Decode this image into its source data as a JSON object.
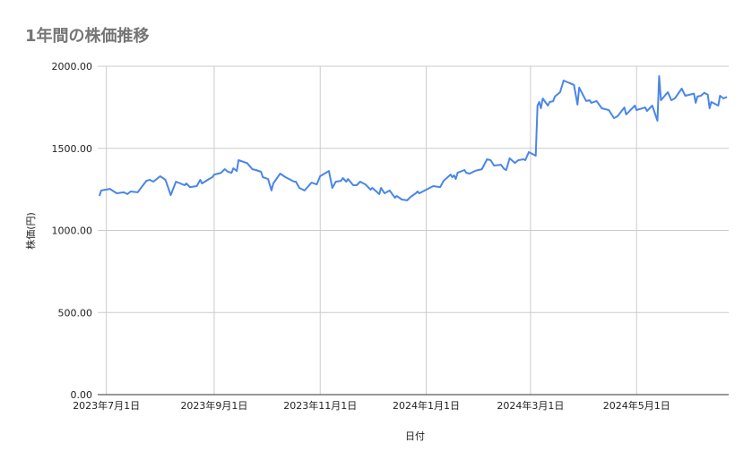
{
  "chart_data": {
    "type": "line",
    "title": "1年間の株価推移",
    "xlabel": "日付",
    "ylabel": "株価(円)",
    "ylim": [
      0,
      2000
    ],
    "xlim": [
      "2023-06-26",
      "2024-06-23"
    ],
    "yticks": [
      0,
      500,
      1000,
      1500,
      2000
    ],
    "ytick_labels": [
      "0.00",
      "500.00",
      "1000.00",
      "1500.00",
      "2000.00"
    ],
    "xticks": [
      "2023-07-01",
      "2023-09-01",
      "2023-11-01",
      "2024-01-01",
      "2024-03-01",
      "2024-05-01"
    ],
    "xtick_labels": [
      "2023年7月1日",
      "2023年9月1日",
      "2023年11月1日",
      "2024年1月1日",
      "2024年3月1日",
      "2024年5月1日"
    ],
    "grid": true,
    "line_color": "#4a86e8",
    "x": [
      "2023-06-27",
      "2023-06-28",
      "2023-07-03",
      "2023-07-07",
      "2023-07-11",
      "2023-07-13",
      "2023-07-15",
      "2023-07-19",
      "2023-07-24",
      "2023-07-26",
      "2023-07-28",
      "2023-08-01",
      "2023-08-04",
      "2023-08-07",
      "2023-08-10",
      "2023-08-15",
      "2023-08-16",
      "2023-08-18",
      "2023-08-22",
      "2023-08-24",
      "2023-08-25",
      "2023-08-29",
      "2023-08-31",
      "2023-09-01",
      "2023-09-05",
      "2023-09-07",
      "2023-09-09",
      "2023-09-11",
      "2023-09-12",
      "2023-09-14",
      "2023-09-15",
      "2023-09-20",
      "2023-09-23",
      "2023-09-25",
      "2023-09-28",
      "2023-09-29",
      "2023-10-02",
      "2023-10-04",
      "2023-10-05",
      "2023-10-09",
      "2023-10-12",
      "2023-10-17",
      "2023-10-18",
      "2023-10-20",
      "2023-10-23",
      "2023-10-27",
      "2023-10-30",
      "2023-11-01",
      "2023-11-06",
      "2023-11-08",
      "2023-11-10",
      "2023-11-13",
      "2023-11-14",
      "2023-11-16",
      "2023-11-17",
      "2023-11-20",
      "2023-11-22",
      "2023-11-24",
      "2023-11-27",
      "2023-11-30",
      "2023-12-01",
      "2023-12-05",
      "2023-12-06",
      "2023-12-08",
      "2023-12-11",
      "2023-12-14",
      "2023-12-15",
      "2023-12-18",
      "2023-12-21",
      "2023-12-23",
      "2023-12-26",
      "2023-12-27",
      "2023-12-28",
      "2024-01-05",
      "2024-01-09",
      "2024-01-11",
      "2024-01-15",
      "2024-01-16",
      "2024-01-17",
      "2024-01-18",
      "2024-01-19",
      "2024-01-23",
      "2024-01-24",
      "2024-01-26",
      "2024-01-29",
      "2024-01-31",
      "2024-02-02",
      "2024-02-05",
      "2024-02-07",
      "2024-02-09",
      "2024-02-13",
      "2024-02-15",
      "2024-02-16",
      "2024-02-18",
      "2024-02-21",
      "2024-02-23",
      "2024-02-26",
      "2024-02-27",
      "2024-02-29",
      "2024-03-04",
      "2024-03-05",
      "2024-03-06",
      "2024-03-07",
      "2024-03-08",
      "2024-03-11",
      "2024-03-12",
      "2024-03-14",
      "2024-03-15",
      "2024-03-18",
      "2024-03-20",
      "2024-03-26",
      "2024-03-28",
      "2024-03-29",
      "2024-04-02",
      "2024-04-04",
      "2024-04-05",
      "2024-04-08",
      "2024-04-11",
      "2024-04-15",
      "2024-04-18",
      "2024-04-20",
      "2024-04-24",
      "2024-04-25",
      "2024-04-30",
      "2024-05-01",
      "2024-05-06",
      "2024-05-07",
      "2024-05-10",
      "2024-05-13",
      "2024-05-14",
      "2024-05-15",
      "2024-05-19",
      "2024-05-21",
      "2024-05-23",
      "2024-05-27",
      "2024-05-29",
      "2024-06-03",
      "2024-06-04",
      "2024-06-05",
      "2024-06-07",
      "2024-06-09",
      "2024-06-11",
      "2024-06-12",
      "2024-06-13",
      "2024-06-17",
      "2024-06-18",
      "2024-06-20",
      "2024-06-22"
    ],
    "values": [
      1210,
      1243,
      1253,
      1226,
      1232,
      1221,
      1237,
      1232,
      1302,
      1308,
      1297,
      1330,
      1308,
      1215,
      1297,
      1275,
      1286,
      1264,
      1270,
      1308,
      1286,
      1313,
      1324,
      1340,
      1351,
      1373,
      1357,
      1351,
      1378,
      1362,
      1428,
      1410,
      1373,
      1368,
      1357,
      1324,
      1313,
      1243,
      1286,
      1346,
      1324,
      1297,
      1297,
      1259,
      1243,
      1291,
      1280,
      1330,
      1362,
      1259,
      1297,
      1302,
      1319,
      1297,
      1313,
      1275,
      1275,
      1297,
      1280,
      1248,
      1259,
      1221,
      1259,
      1226,
      1243,
      1199,
      1210,
      1188,
      1183,
      1204,
      1226,
      1237,
      1226,
      1270,
      1264,
      1302,
      1340,
      1324,
      1335,
      1313,
      1351,
      1368,
      1351,
      1346,
      1362,
      1368,
      1373,
      1433,
      1428,
      1395,
      1400,
      1373,
      1368,
      1439,
      1411,
      1428,
      1433,
      1428,
      1477,
      1455,
      1760,
      1782,
      1744,
      1804,
      1760,
      1782,
      1787,
      1815,
      1842,
      1913,
      1886,
      1766,
      1870,
      1788,
      1793,
      1777,
      1788,
      1744,
      1733,
      1684,
      1695,
      1749,
      1706,
      1760,
      1733,
      1749,
      1727,
      1760,
      1668,
      1940,
      1793,
      1842,
      1793,
      1804,
      1864,
      1820,
      1833,
      1777,
      1815,
      1820,
      1838,
      1826,
      1744,
      1782,
      1760,
      1820,
      1804,
      1813
    ]
  }
}
